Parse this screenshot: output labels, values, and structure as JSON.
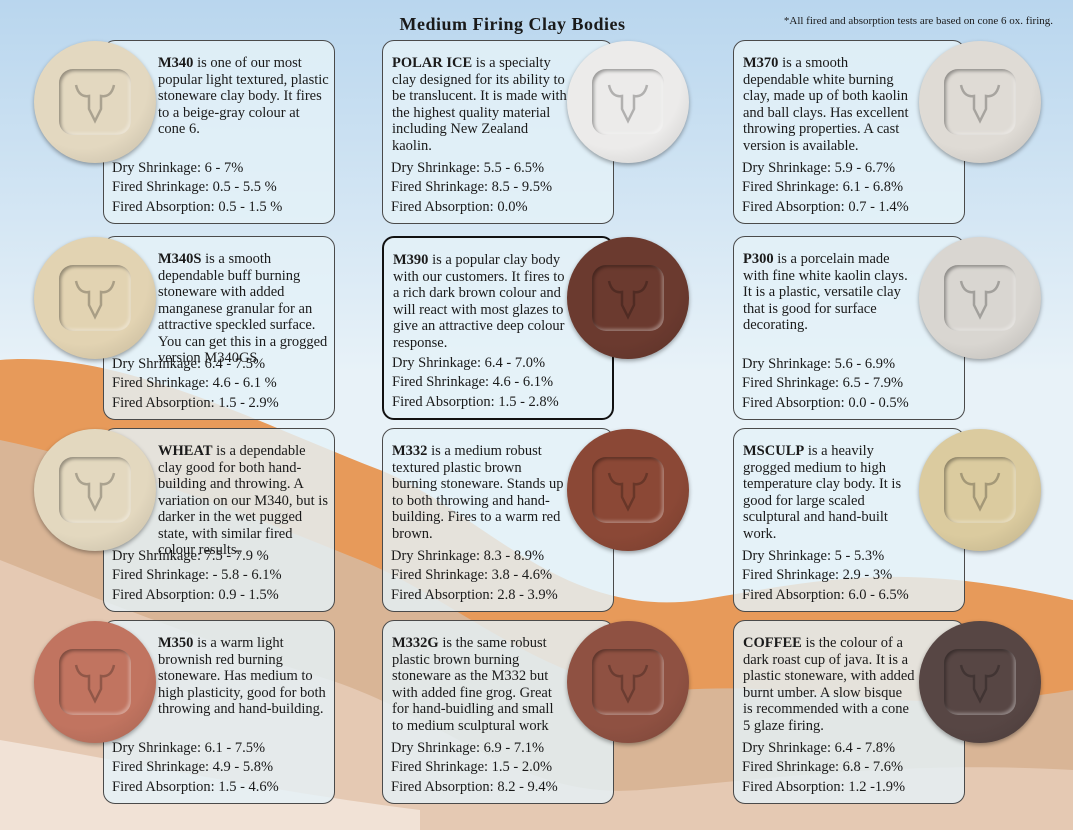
{
  "header": {
    "title": "Medium Firing Clay Bodies",
    "note": "*All fired and absorption tests are based on cone 6 ox. firing."
  },
  "cards": [
    {
      "name": "M340",
      "text": "is one of our most popular light textured, plastic stoneware clay body. It fires to a beige-gray colour at cone 6.",
      "dry": "Dry Shrinkage: 6 - 7%",
      "fired": "Fired Shrinkage: 0.5 - 5.5 %",
      "absorption": "Fired Absorption: 0.5 - 1.5 %"
    },
    {
      "name": "POLAR ICE",
      "text": "is a specialty clay designed for its ability to be translucent. It is made with the highest quality material including New Zealand kaolin.",
      "dry": "Dry Shrinkage: 5.5 - 6.5%",
      "fired": "Fired Shrinkage: 8.5 - 9.5%",
      "absorption": "Fired Absorption: 0.0%"
    },
    {
      "name": "M370",
      "text": "is a smooth dependable white burning clay, made up of both kaolin and ball clays. Has excellent throwing properties. A cast version is available.",
      "dry": "Dry Shrinkage: 5.9 - 6.7%",
      "fired": "Fired Shrinkage: 6.1 - 6.8%",
      "absorption": "Fired Absorption: 0.7 - 1.4%"
    },
    {
      "name": "M340S",
      "text": "is a smooth dependable buff burning stoneware with added manganese granular for an attractive speckled surface. You can get this in a grogged version M340GS",
      "dry": "Dry Shrinkage: 6.4 - 7.5%",
      "fired": "Fired Shrinkage: 4.6 - 6.1 %",
      "absorption": "Fired Absorption: 1.5 - 2.9%"
    },
    {
      "name": "M390",
      "text": "is a popular clay body with our customers. It fires to a rich dark brown colour and will react with most glazes to give an attractive deep colour response.",
      "dry": "Dry Shrinkage: 6.4 - 7.0%",
      "fired": "Fired Shrinkage: 4.6 - 6.1%",
      "absorption": "Fired Absorption: 1.5 - 2.8%"
    },
    {
      "name": "P300",
      "text": "is a porcelain made with fine white kaolin clays. It is a plastic, versatile clay that is good for surface decorating.",
      "dry": "Dry Shrinkage: 5.6 - 6.9%",
      "fired": "Fired Shrinkage: 6.5 - 7.9%",
      "absorption": "Fired Absorption: 0.0 - 0.5%"
    },
    {
      "name": "WHEAT",
      "text": "is a dependable clay good for both hand-building and throwing. A variation on our M340, but is darker in the wet pugged state, with similar fired colour results.",
      "dry": "Dry Shrinkage: 7.5 - 7.9 %",
      "fired": "Fired Shrinkage: - 5.8 - 6.1%",
      "absorption": "Fired Absorption: 0.9 - 1.5%"
    },
    {
      "name": "M332",
      "text": "is a medium robust textured plastic brown burning stoneware. Stands up to both throwing and hand-building. Fires to a warm red brown.",
      "dry": "Dry Shrinkage: 8.3 - 8.9%",
      "fired": "Fired Shrinkage: 3.8 - 4.6%",
      "absorption": "Fired Absorption: 2.8 - 3.9%"
    },
    {
      "name": "MSCULP",
      "text": "is a heavily grogged medium to  high temperature clay body. It is good for large scaled sculptural and hand-built work.",
      "dry": "Dry Shrinkage: 5 - 5.3%",
      "fired": "Fired Shrinkage: 2.9 - 3%",
      "absorption": "Fired Absorption: 6.0 - 6.5%"
    },
    {
      "name": "M350",
      "text": "is a warm light brownish red  burning stoneware. Has medium to high plasticity, good for both throwing and hand-building.",
      "dry": "Dry Shrinkage: 6.1 - 7.5%",
      "fired": "Fired Shrinkage: 4.9 - 5.8%",
      "absorption": "Fired Absorption: 1.5 - 4.6%"
    },
    {
      "name": "M332G",
      "text": "is the same robust plastic brown burning stoneware as the M332 but with added fine grog. Great for hand-buidling and small to medium sculptural work",
      "dry": "Dry Shrinkage: 6.9 - 7.1%",
      "fired": "Fired Shrinkage: 1.5 - 2.0%",
      "absorption": "Fired Absorption: 8.2 - 9.4%"
    },
    {
      "name": "COFFEE",
      "text": "is the colour of a dark roast cup of java. It is a plastic stoneware, with added burnt umber. A slow bisque is recommended with a cone 5 glaze firing.",
      "dry": "Dry Shrinkage: 6.4 - 7.8%",
      "fired": "Fired Shrinkage: 6.8 - 7.6%",
      "absorption": "Fired Absorption: 1.2 -1.9%"
    }
  ]
}
